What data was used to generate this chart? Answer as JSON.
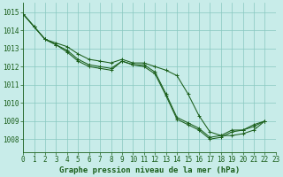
{
  "title": "Graphe pression niveau de la mer (hPa)",
  "bg_color": "#c8ece9",
  "grid_color": "#88c8c0",
  "line_color": "#1a5e1a",
  "xlim": [
    0,
    23
  ],
  "ylim": [
    1007.3,
    1015.5
  ],
  "yticks": [
    1008,
    1009,
    1010,
    1011,
    1012,
    1013,
    1014,
    1015
  ],
  "xticks": [
    0,
    1,
    2,
    3,
    4,
    5,
    6,
    7,
    8,
    9,
    10,
    11,
    12,
    13,
    14,
    15,
    16,
    17,
    18,
    19,
    20,
    21,
    22,
    23
  ],
  "tick_fontsize": 5.5,
  "title_fontsize": 6.5,
  "series": [
    {
      "x": [
        0,
        1,
        2,
        3,
        4,
        5,
        6,
        7,
        8,
        9,
        10,
        11,
        12,
        13,
        14,
        15,
        16,
        17,
        18,
        19,
        20,
        21,
        22
      ],
      "y": [
        1014.9,
        1014.2,
        1013.5,
        1013.2,
        1012.9,
        1012.4,
        1012.1,
        1012.0,
        1011.9,
        1012.3,
        1012.1,
        1012.1,
        1011.7,
        1010.5,
        1009.2,
        1008.9,
        1008.6,
        1008.1,
        1008.2,
        1008.5,
        1008.5,
        1008.8,
        1009.0
      ]
    },
    {
      "x": [
        0,
        1,
        2,
        3,
        4,
        5,
        6,
        7,
        8,
        9,
        10,
        11,
        12,
        13,
        14,
        15,
        16,
        17,
        18,
        19,
        20,
        21,
        22
      ],
      "y": [
        1014.9,
        1014.2,
        1013.5,
        1013.3,
        1013.1,
        1012.7,
        1012.4,
        1012.3,
        1012.2,
        1012.4,
        1012.2,
        1012.2,
        1012.0,
        1011.8,
        1011.5,
        1010.5,
        1009.3,
        1008.4,
        1008.2,
        1008.2,
        1008.3,
        1008.5,
        1009.0
      ]
    },
    {
      "x": [
        0,
        1,
        2,
        3,
        4,
        5,
        6,
        7,
        8,
        9,
        10,
        11,
        12,
        13,
        14,
        15,
        16,
        17,
        18,
        19,
        20,
        21,
        22
      ],
      "y": [
        1014.9,
        1014.2,
        1013.5,
        1013.2,
        1012.8,
        1012.3,
        1012.0,
        1011.9,
        1011.8,
        1012.3,
        1012.1,
        1012.0,
        1011.6,
        1010.4,
        1009.1,
        1008.8,
        1008.5,
        1008.0,
        1008.1,
        1008.4,
        1008.5,
        1008.7,
        1009.0
      ]
    }
  ]
}
